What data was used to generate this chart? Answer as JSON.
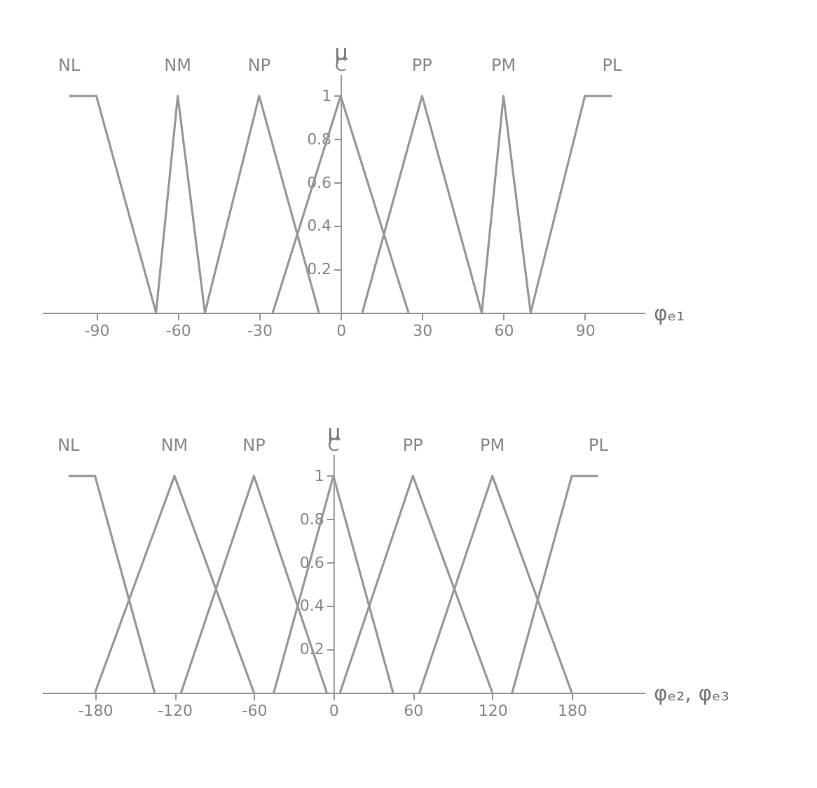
{
  "chart_data": [
    {
      "type": "line",
      "xlabel": "φₑ₁",
      "ylabel": "μ",
      "xlim": [
        -110,
        112
      ],
      "ylim": [
        0,
        1.1
      ],
      "xticks": [
        -90,
        -60,
        -30,
        0,
        30,
        60,
        90
      ],
      "yticks": [
        {
          "value": 0.2,
          "label": "0.2"
        },
        {
          "value": 0.4,
          "label": "0.4"
        },
        {
          "value": 0.6,
          "label": "0.6"
        },
        {
          "value": 0.8,
          "label": "0.8"
        },
        1
      ],
      "grid": false,
      "legend": false,
      "marker": "none",
      "line_style": "solid",
      "series": [
        {
          "name": "NL",
          "color": "#999999",
          "x": [
            -100,
            -90,
            -68
          ],
          "values": [
            1,
            1,
            0
          ]
        },
        {
          "name": "NM",
          "color": "#999999",
          "x": [
            -68,
            -60,
            -50
          ],
          "values": [
            0,
            1,
            0
          ]
        },
        {
          "name": "NP",
          "color": "#999999",
          "x": [
            -50,
            -30,
            -8
          ],
          "values": [
            0,
            1,
            0
          ]
        },
        {
          "name": "C",
          "color": "#999999",
          "x": [
            -25,
            0,
            25
          ],
          "values": [
            0,
            1,
            0
          ]
        },
        {
          "name": "PP",
          "color": "#999999",
          "x": [
            8,
            30,
            52
          ],
          "values": [
            0,
            1,
            0
          ]
        },
        {
          "name": "PM",
          "color": "#999999",
          "x": [
            52,
            60,
            70
          ],
          "values": [
            0,
            1,
            0
          ]
        },
        {
          "name": "PL",
          "color": "#999999",
          "x": [
            70,
            90,
            100
          ],
          "values": [
            0,
            1,
            1
          ]
        }
      ]
    },
    {
      "type": "line",
      "xlabel": "φₑ₂, φₑ₃",
      "ylabel": "μ",
      "xlim": [
        -220,
        235
      ],
      "ylim": [
        0,
        1.1
      ],
      "xticks": [
        -180,
        -120,
        -60,
        0,
        60,
        120,
        180
      ],
      "yticks": [
        {
          "value": 0.2,
          "label": "0.2"
        },
        {
          "value": 0.4,
          "label": "0.4"
        },
        {
          "value": 0.6,
          "label": "0.6"
        },
        {
          "value": 0.8,
          "label": "0.8"
        },
        1
      ],
      "grid": false,
      "legend": false,
      "marker": "none",
      "line_style": "solid",
      "series": [
        {
          "name": "NL",
          "color": "#999999",
          "x": [
            -200,
            -180,
            -135
          ],
          "values": [
            1,
            1,
            0
          ]
        },
        {
          "name": "NM",
          "color": "#999999",
          "x": [
            -180,
            -120,
            -60
          ],
          "values": [
            0,
            1,
            0
          ]
        },
        {
          "name": "NP",
          "color": "#999999",
          "x": [
            -115,
            -60,
            -5
          ],
          "values": [
            0,
            1,
            0
          ]
        },
        {
          "name": "C",
          "color": "#999999",
          "x": [
            -45,
            0,
            45
          ],
          "values": [
            0,
            1,
            0
          ]
        },
        {
          "name": "PP",
          "color": "#999999",
          "x": [
            5,
            60,
            120
          ],
          "values": [
            0,
            1,
            0
          ]
        },
        {
          "name": "PM",
          "color": "#999999",
          "x": [
            65,
            120,
            180
          ],
          "values": [
            0,
            1,
            0
          ]
        },
        {
          "name": "PL",
          "color": "#999999",
          "x": [
            135,
            180,
            200
          ],
          "values": [
            0,
            1,
            1
          ]
        }
      ]
    }
  ]
}
